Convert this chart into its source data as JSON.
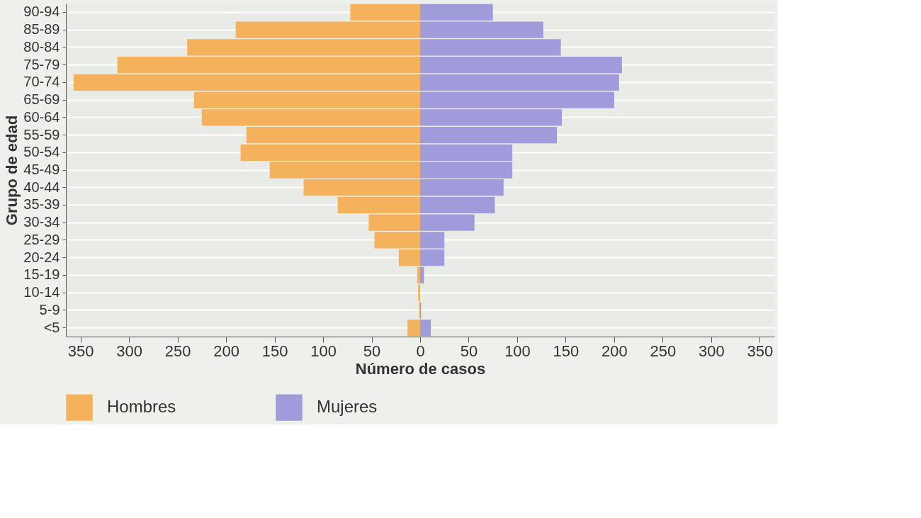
{
  "chart_data": {
    "type": "bar",
    "stacked": true,
    "orientation": "horizontal",
    "xlabel": "Número de casos",
    "ylabel": "Grupo de edad",
    "categories": [
      "90-94",
      "85-89",
      "80-84",
      "75-79",
      "70-74",
      "65-69",
      "60-64",
      "55-59",
      "50-54",
      "45-49",
      "40-44",
      "35-39",
      "30-34",
      "25-29",
      "20-24",
      "15-19",
      "10-14",
      "5-9",
      "<5"
    ],
    "series": [
      {
        "name": "Hombres",
        "color": "#f5b25c",
        "values": [
          -72,
          -190,
          -240,
          -312,
          -357,
          -233,
          -225,
          -179,
          -185,
          -155,
          -120,
          -85,
          -53,
          -47,
          -22,
          -3,
          -2,
          -1,
          -13
        ]
      },
      {
        "name": "Mujeres",
        "color": "#a09cdc",
        "values": [
          75,
          127,
          145,
          208,
          205,
          200,
          146,
          141,
          95,
          95,
          86,
          77,
          56,
          25,
          25,
          4,
          0,
          1,
          11
        ]
      }
    ],
    "xlim": [
      -365,
      365
    ],
    "xticks": [
      {
        "value": -350,
        "label": "350"
      },
      {
        "value": -300,
        "label": "300"
      },
      {
        "value": -250,
        "label": "250"
      },
      {
        "value": -200,
        "label": "200"
      },
      {
        "value": -150,
        "label": "150"
      },
      {
        "value": -100,
        "label": "100"
      },
      {
        "value": -50,
        "label": "50"
      },
      0,
      50,
      100,
      150,
      200,
      250,
      300,
      350
    ],
    "grid": "y",
    "legend": "bottom"
  }
}
